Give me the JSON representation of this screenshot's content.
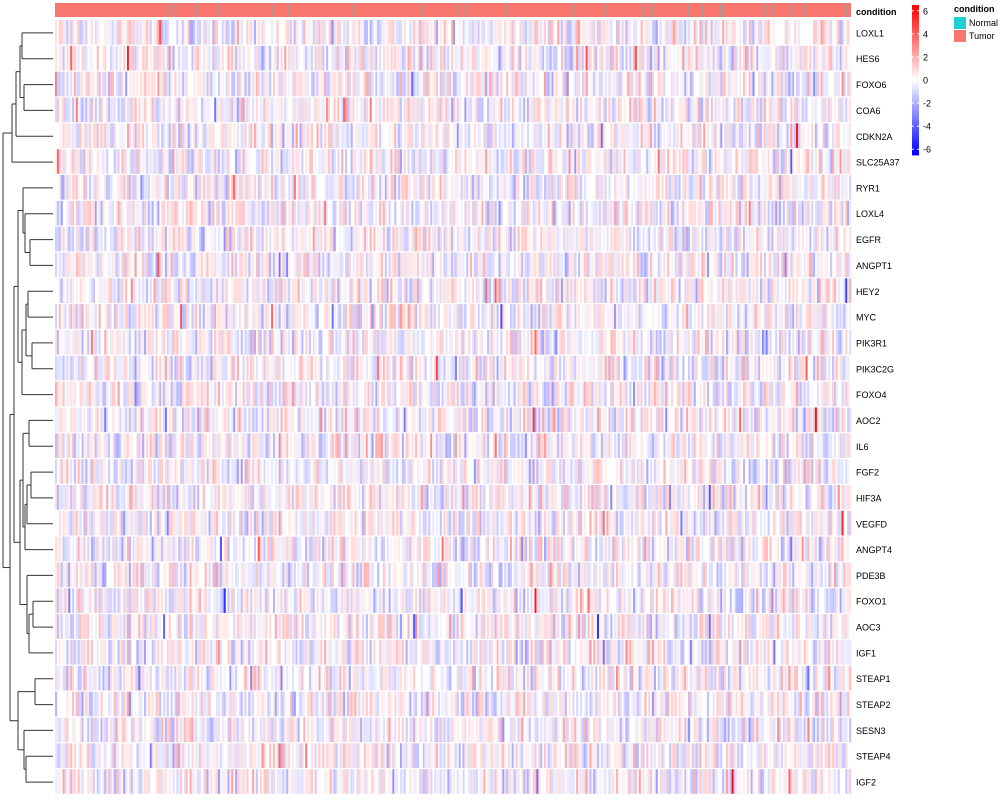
{
  "chart_data": {
    "type": "heatmap",
    "title": "",
    "annotation": {
      "title": "condition",
      "levels": [
        {
          "label": "Normal",
          "color": "#1fcfd0"
        },
        {
          "label": "Tumor",
          "color": "#f8766d"
        }
      ]
    },
    "color_scale": {
      "min": -6.5,
      "max": 6.5,
      "ticks": [
        6,
        4,
        2,
        0,
        -2,
        -4,
        -6
      ],
      "low_color": "#0000ff",
      "mid_color": "#ffffff",
      "high_color": "#ff0000"
    },
    "rows": [
      "LOXL1",
      "HES6",
      "FOXO6",
      "COA6",
      "CDKN2A",
      "SLC25A37",
      "RYR1",
      "LOXL4",
      "EGFR",
      "ANGPT1",
      "HEY2",
      "MYC",
      "PIK3R1",
      "PIK3C2G",
      "FOXO4",
      "AOC2",
      "IL6",
      "FGF2",
      "HIF3A",
      "VEGFD",
      "ANGPT4",
      "PDE3B",
      "FOXO1",
      "AOC3",
      "IGF1",
      "STEAP1",
      "STEAP2",
      "SESN3",
      "STEAP4",
      "IGF2"
    ],
    "row_dendrogram": true,
    "column_dendrogram": false
  }
}
